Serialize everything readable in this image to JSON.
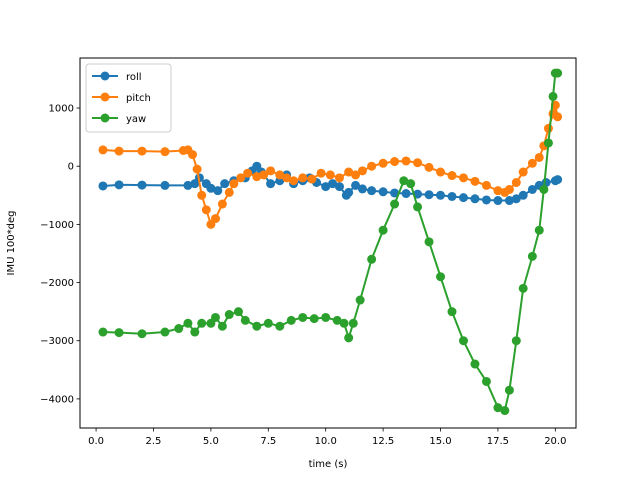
{
  "chart_data": {
    "type": "line",
    "xlabel": "time (s)",
    "ylabel": "IMU 100*deg",
    "xlim": [
      -0.7,
      20.9
    ],
    "ylim": [
      -4500,
      1860
    ],
    "xticks": [
      0.0,
      2.5,
      5.0,
      7.5,
      10.0,
      12.5,
      15.0,
      17.5,
      20.0
    ],
    "xtick_labels": [
      "0.0",
      "2.5",
      "5.0",
      "7.5",
      "10.0",
      "12.5",
      "15.0",
      "17.5",
      "20.0"
    ],
    "yticks": [
      -4000,
      -3000,
      -2000,
      -1000,
      0,
      1000
    ],
    "ytick_labels": [
      "−4000",
      "−3000",
      "−2000",
      "−1000",
      "0",
      "1000"
    ],
    "grid": false,
    "legend_position": "top-left",
    "series": [
      {
        "name": "roll",
        "color": "#1f77b4",
        "points": [
          [
            0.3,
            -340
          ],
          [
            1.0,
            -320
          ],
          [
            2.0,
            -325
          ],
          [
            3.0,
            -330
          ],
          [
            4.0,
            -330
          ],
          [
            4.3,
            -300
          ],
          [
            4.5,
            -200
          ],
          [
            4.8,
            -300
          ],
          [
            5.0,
            -380
          ],
          [
            5.3,
            -420
          ],
          [
            5.6,
            -300
          ],
          [
            6.0,
            -250
          ],
          [
            6.5,
            -200
          ],
          [
            6.8,
            -80
          ],
          [
            7.0,
            0
          ],
          [
            7.2,
            -100
          ],
          [
            7.6,
            -300
          ],
          [
            8.0,
            -250
          ],
          [
            8.3,
            -150
          ],
          [
            8.6,
            -300
          ],
          [
            9.0,
            -250
          ],
          [
            9.3,
            -200
          ],
          [
            9.6,
            -280
          ],
          [
            10.0,
            -350
          ],
          [
            10.3,
            -300
          ],
          [
            10.6,
            -350
          ],
          [
            10.9,
            -500
          ],
          [
            11.0,
            -450
          ],
          [
            11.3,
            -330
          ],
          [
            11.6,
            -390
          ],
          [
            12.0,
            -420
          ],
          [
            12.5,
            -440
          ],
          [
            13.0,
            -460
          ],
          [
            13.5,
            -470
          ],
          [
            14.0,
            -480
          ],
          [
            14.5,
            -490
          ],
          [
            15.0,
            -500
          ],
          [
            15.5,
            -520
          ],
          [
            16.0,
            -540
          ],
          [
            16.5,
            -560
          ],
          [
            17.0,
            -580
          ],
          [
            17.5,
            -590
          ],
          [
            18.0,
            -590
          ],
          [
            18.3,
            -560
          ],
          [
            18.6,
            -500
          ],
          [
            19.0,
            -400
          ],
          [
            19.3,
            -330
          ],
          [
            19.6,
            -280
          ],
          [
            20.0,
            -250
          ],
          [
            20.1,
            -230
          ]
        ]
      },
      {
        "name": "pitch",
        "color": "#ff7f0e",
        "points": [
          [
            0.3,
            280
          ],
          [
            1.0,
            260
          ],
          [
            2.0,
            260
          ],
          [
            3.0,
            250
          ],
          [
            3.8,
            270
          ],
          [
            4.0,
            280
          ],
          [
            4.2,
            200
          ],
          [
            4.4,
            -50
          ],
          [
            4.6,
            -500
          ],
          [
            4.8,
            -750
          ],
          [
            5.0,
            -1000
          ],
          [
            5.2,
            -900
          ],
          [
            5.5,
            -650
          ],
          [
            5.8,
            -450
          ],
          [
            6.0,
            -300
          ],
          [
            6.3,
            -200
          ],
          [
            6.6,
            -120
          ],
          [
            7.0,
            -180
          ],
          [
            7.3,
            -150
          ],
          [
            7.6,
            -80
          ],
          [
            8.0,
            -150
          ],
          [
            8.3,
            -200
          ],
          [
            8.6,
            -250
          ],
          [
            9.0,
            -200
          ],
          [
            9.4,
            -220
          ],
          [
            9.8,
            -120
          ],
          [
            10.2,
            -150
          ],
          [
            10.6,
            -200
          ],
          [
            11.0,
            -100
          ],
          [
            11.3,
            -150
          ],
          [
            11.6,
            -80
          ],
          [
            12.0,
            0
          ],
          [
            12.5,
            50
          ],
          [
            13.0,
            80
          ],
          [
            13.5,
            90
          ],
          [
            14.0,
            60
          ],
          [
            14.5,
            -20
          ],
          [
            15.0,
            -100
          ],
          [
            15.5,
            -160
          ],
          [
            16.0,
            -200
          ],
          [
            16.5,
            -260
          ],
          [
            17.0,
            -330
          ],
          [
            17.5,
            -420
          ],
          [
            17.8,
            -450
          ],
          [
            18.0,
            -400
          ],
          [
            18.3,
            -280
          ],
          [
            18.6,
            -100
          ],
          [
            19.0,
            50
          ],
          [
            19.3,
            150
          ],
          [
            19.5,
            350
          ],
          [
            19.7,
            650
          ],
          [
            19.9,
            900
          ],
          [
            20.0,
            1050
          ],
          [
            20.1,
            850
          ]
        ]
      },
      {
        "name": "yaw",
        "color": "#2ca02c",
        "points": [
          [
            0.3,
            -2850
          ],
          [
            1.0,
            -2860
          ],
          [
            2.0,
            -2880
          ],
          [
            3.0,
            -2850
          ],
          [
            3.6,
            -2790
          ],
          [
            4.0,
            -2700
          ],
          [
            4.3,
            -2850
          ],
          [
            4.6,
            -2700
          ],
          [
            5.0,
            -2700
          ],
          [
            5.2,
            -2600
          ],
          [
            5.5,
            -2750
          ],
          [
            5.8,
            -2550
          ],
          [
            6.2,
            -2500
          ],
          [
            6.5,
            -2650
          ],
          [
            7.0,
            -2750
          ],
          [
            7.5,
            -2700
          ],
          [
            8.0,
            -2750
          ],
          [
            8.5,
            -2650
          ],
          [
            9.0,
            -2600
          ],
          [
            9.5,
            -2620
          ],
          [
            10.0,
            -2600
          ],
          [
            10.5,
            -2650
          ],
          [
            10.8,
            -2700
          ],
          [
            11.0,
            -2950
          ],
          [
            11.2,
            -2700
          ],
          [
            11.5,
            -2300
          ],
          [
            12.0,
            -1600
          ],
          [
            12.5,
            -1100
          ],
          [
            13.0,
            -650
          ],
          [
            13.4,
            -250
          ],
          [
            13.7,
            -300
          ],
          [
            14.0,
            -700
          ],
          [
            14.5,
            -1300
          ],
          [
            15.0,
            -1900
          ],
          [
            15.5,
            -2500
          ],
          [
            16.0,
            -3000
          ],
          [
            16.5,
            -3400
          ],
          [
            17.0,
            -3700
          ],
          [
            17.5,
            -4150
          ],
          [
            17.8,
            -4200
          ],
          [
            18.0,
            -3850
          ],
          [
            18.3,
            -3000
          ],
          [
            18.6,
            -2100
          ],
          [
            19.0,
            -1550
          ],
          [
            19.3,
            -1100
          ],
          [
            19.5,
            -400
          ],
          [
            19.7,
            400
          ],
          [
            19.9,
            1200
          ],
          [
            20.0,
            1600
          ],
          [
            20.1,
            1600
          ]
        ]
      }
    ]
  }
}
